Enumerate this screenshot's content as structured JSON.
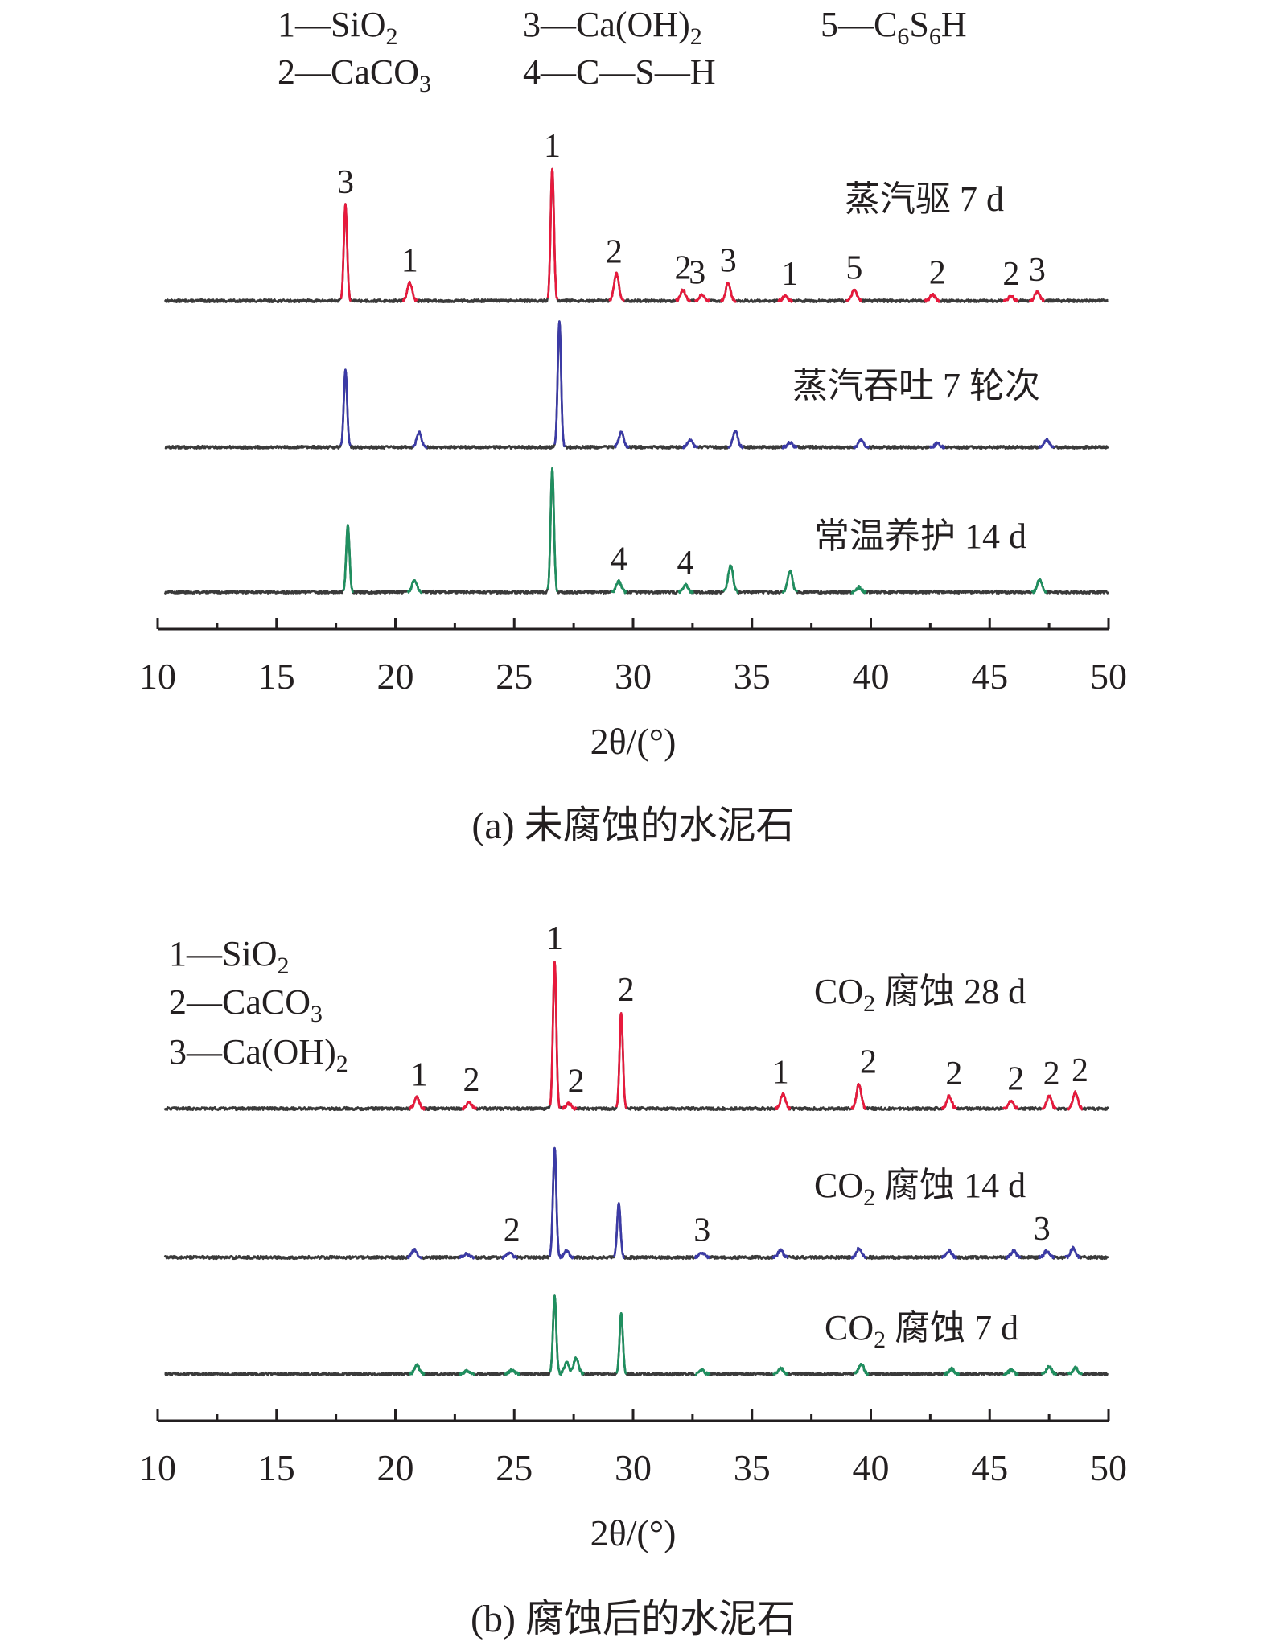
{
  "chart_data": [
    {
      "type": "line",
      "caption": "(a) 未腐蚀的水泥石",
      "xlabel": "2θ/(°)",
      "xlim": [
        10,
        50
      ],
      "xticks": [
        10,
        15,
        20,
        25,
        30,
        35,
        40,
        45,
        50
      ],
      "legend": [
        {
          "id": "1",
          "text": "1—SiO₂"
        },
        {
          "id": "2",
          "text": "2—CaCO₃"
        },
        {
          "id": "3",
          "text": "3—Ca(OH)₂"
        },
        {
          "id": "4",
          "text": "4—C—S—H"
        },
        {
          "id": "5",
          "text": "5—C₆S₆H"
        }
      ],
      "series": [
        {
          "name": "蒸汽驱 7 d",
          "color": "#e8193c",
          "peaks": [
            {
              "x": 17.9,
              "h": 1.6
            },
            {
              "x": 20.6,
              "h": 0.3
            },
            {
              "x": 26.6,
              "h": 2.2
            },
            {
              "x": 29.3,
              "h": 0.45
            },
            {
              "x": 32.1,
              "h": 0.18
            },
            {
              "x": 32.9,
              "h": 0.1
            },
            {
              "x": 34.0,
              "h": 0.3
            },
            {
              "x": 36.4,
              "h": 0.08
            },
            {
              "x": 39.3,
              "h": 0.18
            },
            {
              "x": 42.6,
              "h": 0.1
            },
            {
              "x": 45.9,
              "h": 0.08
            },
            {
              "x": 47.0,
              "h": 0.15
            }
          ],
          "annotations": [
            {
              "x": 17.9,
              "text": "3"
            },
            {
              "x": 20.6,
              "text": "1"
            },
            {
              "x": 26.6,
              "text": "1"
            },
            {
              "x": 29.2,
              "text": "2"
            },
            {
              "x": 32.1,
              "text": "2"
            },
            {
              "x": 32.7,
              "text": "3"
            },
            {
              "x": 34.0,
              "text": "3"
            },
            {
              "x": 36.6,
              "text": "1"
            },
            {
              "x": 39.3,
              "text": "5"
            },
            {
              "x": 42.8,
              "text": "2"
            },
            {
              "x": 45.9,
              "text": "2"
            },
            {
              "x": 47.0,
              "text": "3"
            }
          ]
        },
        {
          "name": "蒸汽吞吐 7 轮次",
          "color": "#3b3aa6",
          "peaks": [
            {
              "x": 17.9,
              "h": 1.3
            },
            {
              "x": 21.0,
              "h": 0.25
            },
            {
              "x": 26.9,
              "h": 2.1
            },
            {
              "x": 29.5,
              "h": 0.25
            },
            {
              "x": 32.4,
              "h": 0.12
            },
            {
              "x": 34.3,
              "h": 0.28
            },
            {
              "x": 36.6,
              "h": 0.08
            },
            {
              "x": 39.6,
              "h": 0.12
            },
            {
              "x": 42.8,
              "h": 0.06
            },
            {
              "x": 47.4,
              "h": 0.12
            }
          ],
          "annotations": []
        },
        {
          "name": "常温养护 14 d",
          "color": "#1f8f5f",
          "peaks": [
            {
              "x": 18.0,
              "h": 1.1
            },
            {
              "x": 20.8,
              "h": 0.2
            },
            {
              "x": 26.6,
              "h": 2.05
            },
            {
              "x": 29.4,
              "h": 0.18
            },
            {
              "x": 32.2,
              "h": 0.12
            },
            {
              "x": 34.1,
              "h": 0.45
            },
            {
              "x": 36.6,
              "h": 0.35
            },
            {
              "x": 39.5,
              "h": 0.08
            },
            {
              "x": 47.1,
              "h": 0.2
            }
          ],
          "annotations": [
            {
              "x": 29.4,
              "text": "4"
            },
            {
              "x": 32.2,
              "text": "4"
            }
          ]
        }
      ]
    },
    {
      "type": "line",
      "caption": "(b) 腐蚀后的水泥石",
      "xlabel": "2θ/(°)",
      "xlim": [
        10,
        50
      ],
      "xticks": [
        10,
        15,
        20,
        25,
        30,
        35,
        40,
        45,
        50
      ],
      "legend": [
        {
          "id": "1",
          "text": "1—SiO₂"
        },
        {
          "id": "2",
          "text": "2—CaCO₃"
        },
        {
          "id": "3",
          "text": "3—Ca(OH)₂"
        }
      ],
      "series": [
        {
          "name": "CO₂ 腐蚀 28 d",
          "color": "#e8193c",
          "peaks": [
            {
              "x": 20.9,
              "h": 0.18
            },
            {
              "x": 23.1,
              "h": 0.1
            },
            {
              "x": 26.7,
              "h": 2.3
            },
            {
              "x": 27.3,
              "h": 0.08
            },
            {
              "x": 29.5,
              "h": 1.5
            },
            {
              "x": 36.3,
              "h": 0.22
            },
            {
              "x": 39.5,
              "h": 0.38
            },
            {
              "x": 43.3,
              "h": 0.2
            },
            {
              "x": 45.9,
              "h": 0.12
            },
            {
              "x": 47.5,
              "h": 0.2
            },
            {
              "x": 48.6,
              "h": 0.25
            }
          ],
          "annotations": [
            {
              "x": 21.0,
              "text": "1"
            },
            {
              "x": 23.2,
              "text": "2"
            },
            {
              "x": 26.7,
              "text": "1"
            },
            {
              "x": 27.6,
              "text": "2"
            },
            {
              "x": 29.7,
              "text": "2"
            },
            {
              "x": 36.2,
              "text": "1"
            },
            {
              "x": 39.9,
              "text": "2"
            },
            {
              "x": 43.5,
              "text": "2"
            },
            {
              "x": 46.1,
              "text": "2"
            },
            {
              "x": 47.6,
              "text": "2"
            },
            {
              "x": 48.8,
              "text": "2"
            }
          ]
        },
        {
          "name": "CO₂ 腐蚀 14 d",
          "color": "#3b3aa6",
          "peaks": [
            {
              "x": 20.8,
              "h": 0.12
            },
            {
              "x": 23.0,
              "h": 0.06
            },
            {
              "x": 24.8,
              "h": 0.08
            },
            {
              "x": 26.7,
              "h": 1.7
            },
            {
              "x": 27.2,
              "h": 0.1
            },
            {
              "x": 29.4,
              "h": 0.85
            },
            {
              "x": 32.9,
              "h": 0.08
            },
            {
              "x": 36.2,
              "h": 0.12
            },
            {
              "x": 39.5,
              "h": 0.14
            },
            {
              "x": 43.3,
              "h": 0.1
            },
            {
              "x": 46.0,
              "h": 0.1
            },
            {
              "x": 47.4,
              "h": 0.1
            },
            {
              "x": 48.5,
              "h": 0.14
            }
          ],
          "annotations": [
            {
              "x": 24.9,
              "text": "2"
            },
            {
              "x": 32.9,
              "text": "3"
            },
            {
              "x": 47.2,
              "text": "3"
            }
          ]
        },
        {
          "name": "CO₂ 腐蚀 7 d",
          "color": "#1f8f5f",
          "peaks": [
            {
              "x": 20.9,
              "h": 0.14
            },
            {
              "x": 23.0,
              "h": 0.05
            },
            {
              "x": 24.9,
              "h": 0.06
            },
            {
              "x": 26.7,
              "h": 1.2
            },
            {
              "x": 27.2,
              "h": 0.18
            },
            {
              "x": 27.6,
              "h": 0.25
            },
            {
              "x": 29.5,
              "h": 0.95
            },
            {
              "x": 32.9,
              "h": 0.06
            },
            {
              "x": 36.2,
              "h": 0.1
            },
            {
              "x": 39.6,
              "h": 0.16
            },
            {
              "x": 43.4,
              "h": 0.08
            },
            {
              "x": 45.9,
              "h": 0.06
            },
            {
              "x": 47.5,
              "h": 0.12
            },
            {
              "x": 48.6,
              "h": 0.1
            }
          ],
          "annotations": []
        }
      ]
    }
  ]
}
